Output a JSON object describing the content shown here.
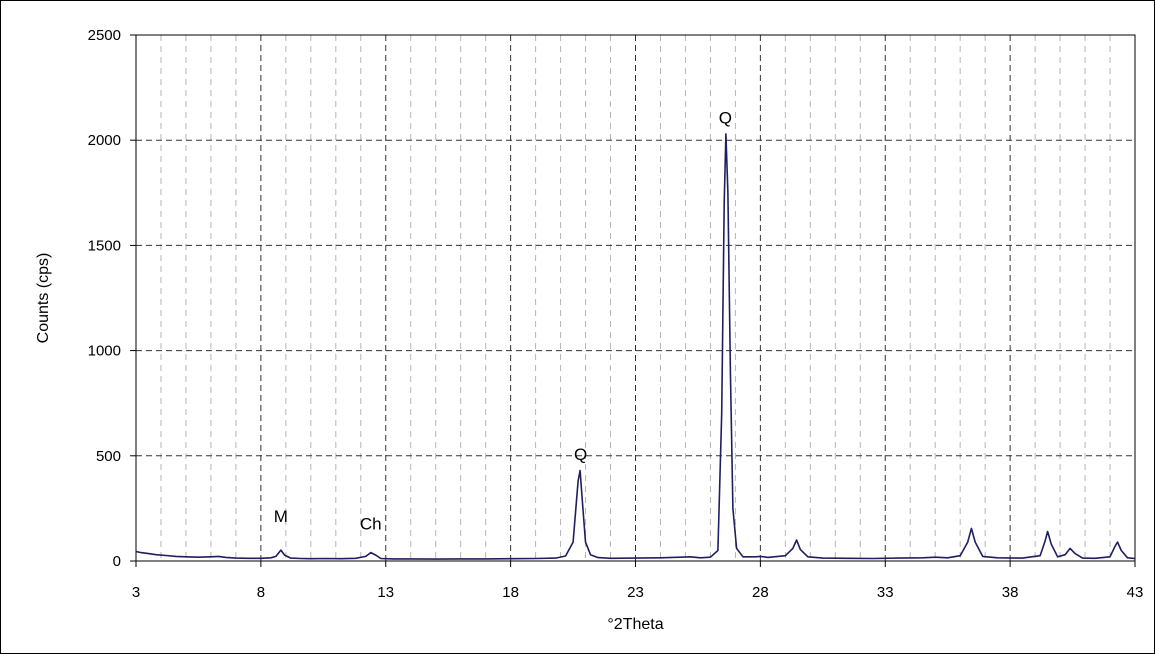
{
  "chart_data": {
    "type": "line",
    "title": "",
    "xlabel": "°2Theta",
    "ylabel": "Counts (cps)",
    "xlim": [
      3,
      43
    ],
    "ylim": [
      0,
      2500
    ],
    "x_ticks": [
      "3",
      "8",
      "13",
      "18",
      "23",
      "28",
      "33",
      "38",
      "43"
    ],
    "y_ticks": [
      "0",
      "500",
      "1000",
      "1500",
      "2000",
      "2500"
    ],
    "grid": {
      "major": true,
      "minor": true,
      "style": "dashed"
    },
    "line_color": "#1f1f5f",
    "annotations": [
      {
        "text": "M",
        "x": 8.8,
        "y": 185
      },
      {
        "text": "Ch",
        "x": 12.4,
        "y": 150
      },
      {
        "text": "Q",
        "x": 20.8,
        "y": 480
      },
      {
        "text": "Q",
        "x": 26.6,
        "y": 2080
      }
    ],
    "series": [
      {
        "points": [
          [
            3.0,
            45
          ],
          [
            3.2,
            40
          ],
          [
            3.5,
            35
          ],
          [
            3.8,
            30
          ],
          [
            4.2,
            26
          ],
          [
            4.6,
            22
          ],
          [
            5.0,
            20
          ],
          [
            5.5,
            18
          ],
          [
            6.0,
            20
          ],
          [
            6.3,
            22
          ],
          [
            6.6,
            17
          ],
          [
            7.0,
            14
          ],
          [
            7.5,
            13
          ],
          [
            8.0,
            13
          ],
          [
            8.4,
            15
          ],
          [
            8.6,
            22
          ],
          [
            8.8,
            52
          ],
          [
            8.95,
            28
          ],
          [
            9.2,
            14
          ],
          [
            9.6,
            12
          ],
          [
            10.0,
            11
          ],
          [
            10.6,
            12
          ],
          [
            11.2,
            11
          ],
          [
            11.8,
            13
          ],
          [
            12.2,
            22
          ],
          [
            12.4,
            40
          ],
          [
            12.6,
            28
          ],
          [
            12.8,
            12
          ],
          [
            13.3,
            10
          ],
          [
            14.0,
            10
          ],
          [
            15.0,
            9
          ],
          [
            16.0,
            10
          ],
          [
            17.0,
            10
          ],
          [
            18.0,
            11
          ],
          [
            19.0,
            12
          ],
          [
            19.8,
            14
          ],
          [
            20.2,
            24
          ],
          [
            20.5,
            90
          ],
          [
            20.7,
            380
          ],
          [
            20.78,
            430
          ],
          [
            20.86,
            300
          ],
          [
            21.0,
            90
          ],
          [
            21.2,
            30
          ],
          [
            21.5,
            16
          ],
          [
            22.0,
            13
          ],
          [
            23.0,
            14
          ],
          [
            24.0,
            15
          ],
          [
            24.8,
            18
          ],
          [
            25.2,
            20
          ],
          [
            25.6,
            15
          ],
          [
            26.0,
            18
          ],
          [
            26.3,
            50
          ],
          [
            26.45,
            700
          ],
          [
            26.55,
            1700
          ],
          [
            26.62,
            2030
          ],
          [
            26.7,
            1750
          ],
          [
            26.8,
            900
          ],
          [
            26.9,
            250
          ],
          [
            27.05,
            60
          ],
          [
            27.3,
            20
          ],
          [
            27.8,
            20
          ],
          [
            28.0,
            22
          ],
          [
            28.3,
            17
          ],
          [
            29.0,
            25
          ],
          [
            29.3,
            60
          ],
          [
            29.45,
            100
          ],
          [
            29.6,
            55
          ],
          [
            29.9,
            20
          ],
          [
            30.5,
            14
          ],
          [
            31.5,
            13
          ],
          [
            32.5,
            12
          ],
          [
            33.5,
            14
          ],
          [
            34.5,
            15
          ],
          [
            35.0,
            18
          ],
          [
            35.5,
            15
          ],
          [
            36.0,
            25
          ],
          [
            36.3,
            90
          ],
          [
            36.45,
            155
          ],
          [
            36.6,
            90
          ],
          [
            36.9,
            22
          ],
          [
            37.5,
            15
          ],
          [
            38.5,
            14
          ],
          [
            39.2,
            25
          ],
          [
            39.4,
            95
          ],
          [
            39.5,
            140
          ],
          [
            39.65,
            80
          ],
          [
            39.9,
            20
          ],
          [
            40.2,
            30
          ],
          [
            40.4,
            60
          ],
          [
            40.6,
            35
          ],
          [
            40.9,
            14
          ],
          [
            41.4,
            13
          ],
          [
            42.0,
            20
          ],
          [
            42.2,
            70
          ],
          [
            42.3,
            90
          ],
          [
            42.45,
            50
          ],
          [
            42.7,
            15
          ],
          [
            43.0,
            12
          ]
        ]
      }
    ]
  }
}
